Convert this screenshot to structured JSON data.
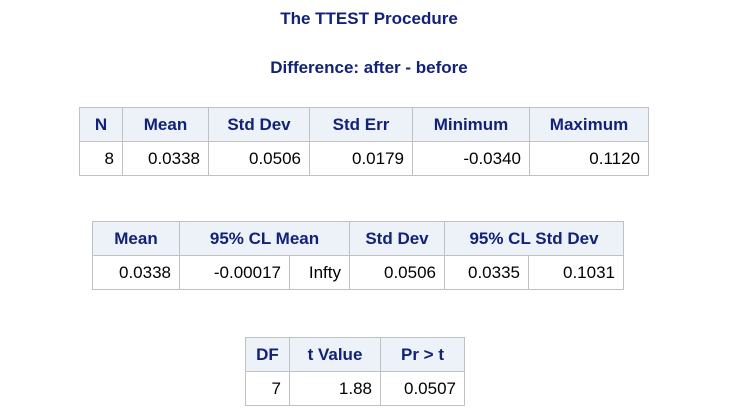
{
  "procedure_title": "The TTEST Procedure",
  "difference_title": "Difference: after - before",
  "stats_table": {
    "headers": [
      "N",
      "Mean",
      "Std Dev",
      "Std Err",
      "Minimum",
      "Maximum"
    ],
    "row": [
      "8",
      "0.0338",
      "0.0506",
      "0.0179",
      "-0.0340",
      "0.1120"
    ]
  },
  "cl_table": {
    "headers": {
      "mean": "Mean",
      "cl_mean": "95% CL Mean",
      "std_dev": "Std Dev",
      "cl_std_dev": "95% CL Std Dev"
    },
    "row": {
      "mean": "0.0338",
      "cl_mean_lower": "-0.00017",
      "cl_mean_upper": "Infty",
      "std_dev": "0.0506",
      "cl_std_dev_lower": "0.0335",
      "cl_std_dev_upper": "0.1031"
    }
  },
  "t_table": {
    "headers": [
      "DF",
      "t Value",
      "Pr > t"
    ],
    "row": [
      "7",
      "1.88",
      "0.0507"
    ]
  },
  "colors": {
    "header_text": "#112277",
    "header_background": "#edf2f9",
    "border": "#c1c1c1"
  }
}
